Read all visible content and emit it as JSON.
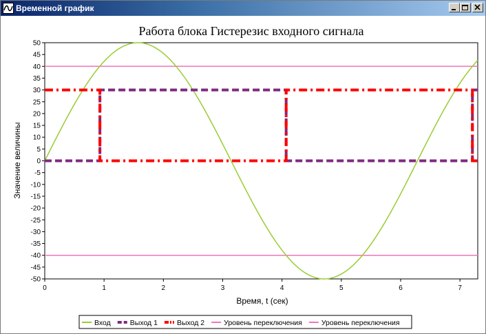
{
  "window": {
    "title": "Временной график",
    "icon": "chart-app-icon"
  },
  "chart_data": {
    "type": "line",
    "title": "Работа блока Гистерезис входного сигнала",
    "xlabel": "Время, t (сек)",
    "ylabel": "Значение величины",
    "xlim": [
      0,
      7.3
    ],
    "ylim": [
      -50,
      50
    ],
    "xticks": [
      0,
      1,
      2,
      3,
      4,
      5,
      6,
      7
    ],
    "yticks": [
      50,
      45,
      40,
      35,
      30,
      25,
      20,
      15,
      10,
      5,
      0,
      -5,
      -10,
      -15,
      -20,
      -25,
      -30,
      -35,
      -40,
      -45,
      -50
    ],
    "grid": false,
    "legend_position": "bottom-center",
    "series": [
      {
        "name": "Вход",
        "color": "#99cc33",
        "style": "solid",
        "function": "50*sin(t)"
      },
      {
        "name": "Выход 1",
        "color": "#7f2a7f",
        "style": "dashed",
        "x": [
          0,
          0.93,
          0.93,
          4.07,
          4.07,
          7.21,
          7.21,
          7.3
        ],
        "y": [
          0,
          0,
          30,
          30,
          0,
          0,
          30,
          30
        ]
      },
      {
        "name": "Выход 2",
        "color": "#ff0000",
        "style": "dash-dot",
        "x": [
          0,
          0.93,
          0.93,
          4.07,
          4.07,
          7.21,
          7.21,
          7.3
        ],
        "y": [
          30,
          30,
          0,
          0,
          30,
          30,
          0,
          0
        ]
      },
      {
        "name": "Уровень переключения",
        "color": "#ee77bb",
        "style": "solid",
        "x": [
          0,
          7.3
        ],
        "y": [
          40,
          40
        ]
      },
      {
        "name": "Уровень переключения",
        "color": "#ee77bb",
        "style": "solid",
        "x": [
          0,
          7.3
        ],
        "y": [
          -40,
          -40
        ]
      }
    ]
  }
}
